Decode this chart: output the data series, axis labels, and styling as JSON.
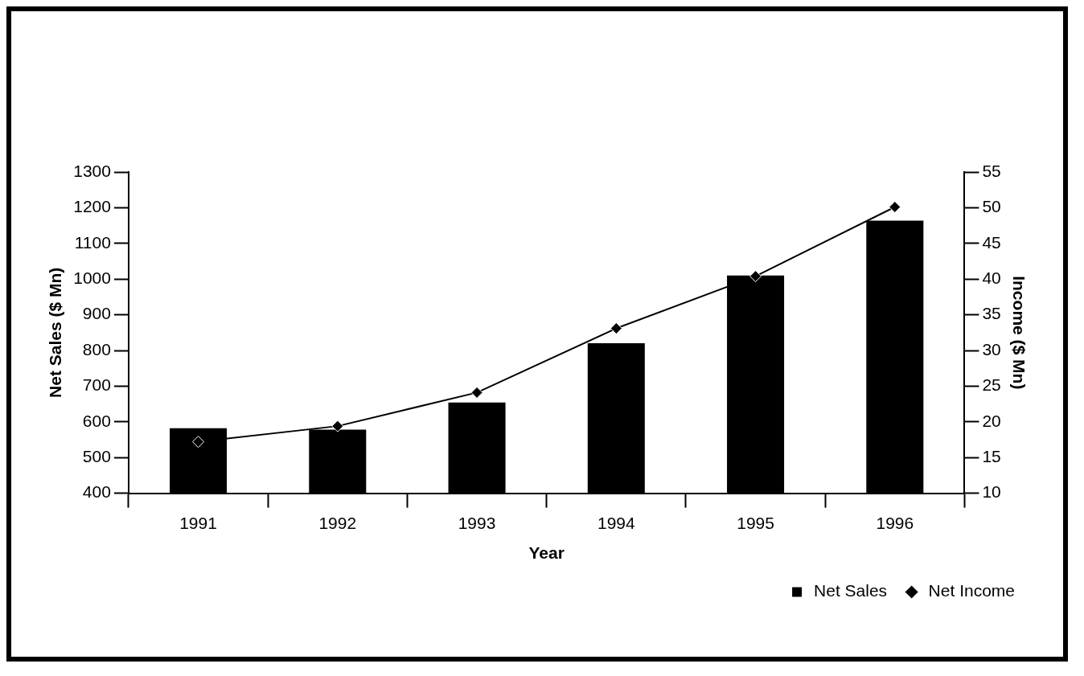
{
  "chart_data": {
    "type": "bar",
    "categories": [
      "1991",
      "1992",
      "1993",
      "1994",
      "1995",
      "1996"
    ],
    "xlabel": "Year",
    "ylabel": "Net Sales ($ Mn)",
    "y2label": "Income ($ Mn)",
    "series": [
      {
        "name": "Net Sales",
        "color": "#000000",
        "values": [
          582,
          578,
          654,
          820,
          1010,
          1164
        ]
      },
      {
        "name": "Net Income",
        "type": "line",
        "color": "#000000",
        "axis": "y2",
        "marker": "diamond",
        "values": [
          17.2,
          19.4,
          24.1,
          33.1,
          40.4,
          50.1
        ]
      }
    ],
    "ylim": [
      400,
      1300
    ],
    "yticks": [
      400,
      500,
      600,
      700,
      800,
      900,
      1000,
      1100,
      1200,
      1300
    ],
    "y2lim": [
      10,
      55
    ],
    "y2ticks": [
      10,
      15,
      20,
      25,
      30,
      35,
      40,
      45,
      50,
      55
    ],
    "grid": false,
    "legend": "bottom right"
  }
}
